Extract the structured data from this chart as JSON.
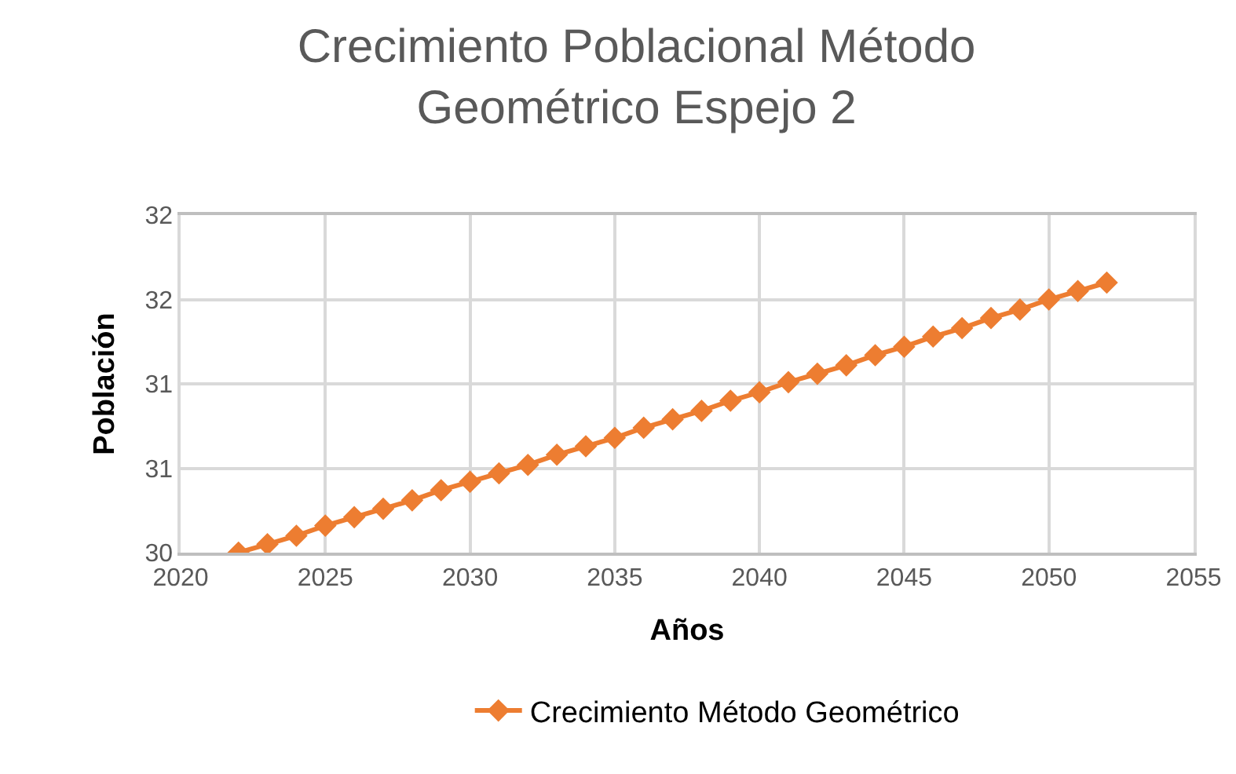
{
  "chart_data": {
    "type": "line",
    "title": "Crecimiento Poblacional Método\nGeométrico Espejo 2",
    "xlabel": "Años",
    "ylabel": "Población",
    "x": [
      2022,
      2023,
      2024,
      2025,
      2026,
      2027,
      2028,
      2029,
      2030,
      2031,
      2032,
      2033,
      2034,
      2035,
      2036,
      2037,
      2038,
      2039,
      2040,
      2041,
      2042,
      2043,
      2044,
      2045,
      2046,
      2047,
      2048,
      2049,
      2050,
      2051,
      2052
    ],
    "series": [
      {
        "name": "Crecimiento Método Geométrico",
        "color": "#ed7d31",
        "values": [
          30.0,
          30.05,
          30.1,
          30.16,
          30.21,
          30.26,
          30.31,
          30.37,
          30.42,
          30.47,
          30.52,
          30.58,
          30.63,
          30.68,
          30.74,
          30.79,
          30.84,
          30.9,
          30.95,
          31.01,
          31.06,
          31.11,
          31.17,
          31.22,
          31.28,
          31.33,
          31.39,
          31.44,
          31.5,
          31.55,
          31.6
        ]
      }
    ],
    "xlim": [
      2020,
      2055
    ],
    "xticks": [
      2020,
      2025,
      2030,
      2035,
      2040,
      2045,
      2050,
      2055
    ],
    "ylim": [
      30,
      32
    ],
    "yticks": [
      {
        "value": 30,
        "label": "30"
      },
      {
        "value": 30.5,
        "label": "31"
      },
      {
        "value": 31,
        "label": "31"
      },
      {
        "value": 31.5,
        "label": "32"
      },
      {
        "value": 32,
        "label": "32"
      }
    ],
    "grid": true,
    "legend": "bottom",
    "marker": "diamond",
    "line_style": "solid"
  }
}
